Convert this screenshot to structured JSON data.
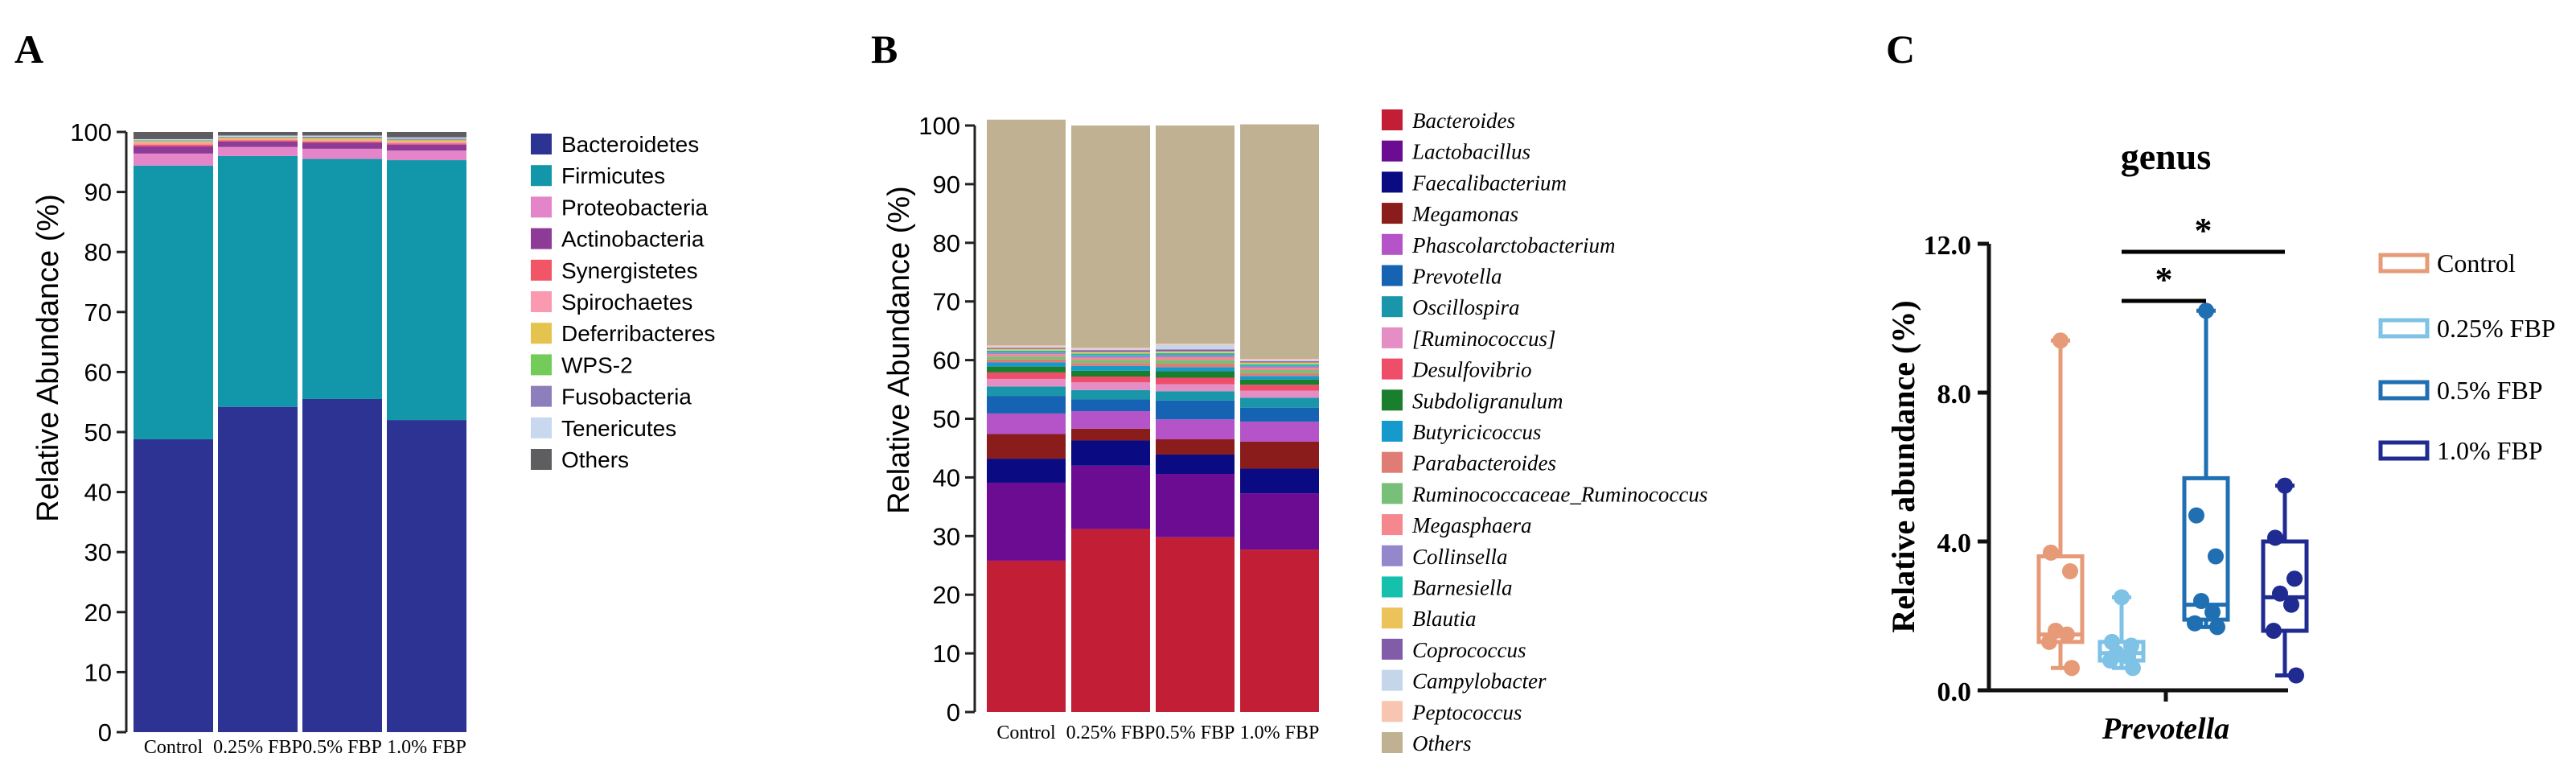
{
  "panel_labels": {
    "a": "A",
    "b": "B",
    "c": "C"
  },
  "colors": {
    "phylum": [
      "#2d3393",
      "#1296a9",
      "#e585c9",
      "#8e3b98",
      "#f25566",
      "#f99ab0",
      "#e5c34f",
      "#73cc59",
      "#8c7fbc",
      "#c8d8ee",
      "#5e5e61"
    ],
    "genus": [
      "#c21f37",
      "#6c0c93",
      "#0a0a82",
      "#8b1c1c",
      "#b454c8",
      "#1763b3",
      "#1a96aa",
      "#e58ec6",
      "#ee4e69",
      "#1a7f2d",
      "#1699cd",
      "#df7d74",
      "#78c079",
      "#f4888e",
      "#9487cb",
      "#15c0ad",
      "#ecc25a",
      "#815ca9",
      "#c5d6eb",
      "#f8c5b0",
      "#c0b193"
    ],
    "groups": [
      "#e69a77",
      "#7ec2e6",
      "#1f6fb2",
      "#1f2b91"
    ]
  },
  "chart_data": [
    {
      "type": "bar",
      "stacked": true,
      "panel": "A",
      "ylabel": "Relative Abundance (%)",
      "ylim": [
        0,
        100
      ],
      "yticks": [
        "0",
        "10",
        "20",
        "30",
        "40",
        "50",
        "60",
        "70",
        "80",
        "90",
        "100"
      ],
      "categories": [
        "Control",
        "0.25% FBP",
        "0.5% FBP",
        "1.0% FBP"
      ],
      "legend_position": "right",
      "series": [
        {
          "name": "Bacteroidetes",
          "values": [
            48.8,
            54.2,
            55.5,
            52.0
          ]
        },
        {
          "name": "Firmicutes",
          "values": [
            45.6,
            41.8,
            40.0,
            43.3
          ]
        },
        {
          "name": "Proteobacteria",
          "values": [
            2.0,
            1.5,
            1.7,
            1.6
          ]
        },
        {
          "name": "Actinobacteria",
          "values": [
            1.2,
            0.9,
            1.0,
            1.0
          ]
        },
        {
          "name": "Synergistetes",
          "values": [
            0.3,
            0.2,
            0.2,
            0.2
          ]
        },
        {
          "name": "Spirochaetes",
          "values": [
            0.3,
            0.2,
            0.2,
            0.3
          ]
        },
        {
          "name": "Deferribacteres",
          "values": [
            0.2,
            0.2,
            0.3,
            0.2
          ]
        },
        {
          "name": "WPS-2",
          "values": [
            0.1,
            0.1,
            0.1,
            0.1
          ]
        },
        {
          "name": "Fusobacteria",
          "values": [
            0.1,
            0.1,
            0.2,
            0.2
          ]
        },
        {
          "name": "Tenericutes",
          "values": [
            0.2,
            0.2,
            0.2,
            0.2
          ]
        },
        {
          "name": "Others",
          "values": [
            1.2,
            0.6,
            0.6,
            0.9
          ]
        }
      ]
    },
    {
      "type": "bar",
      "stacked": true,
      "panel": "B",
      "ylabel": "Relative Abundance (%)",
      "ylim": [
        0,
        100
      ],
      "yticks": [
        "0",
        "10",
        "20",
        "30",
        "40",
        "50",
        "60",
        "70",
        "80",
        "90",
        "100"
      ],
      "categories": [
        "Control",
        "0.25% FBP",
        "0.5% FBP",
        "1.0% FBP"
      ],
      "legend_position": "right",
      "series": [
        {
          "name": "Bacteroides",
          "values": [
            25.8,
            31.2,
            29.8,
            27.7
          ]
        },
        {
          "name": "Lactobacillus",
          "values": [
            13.3,
            10.8,
            10.8,
            9.6
          ]
        },
        {
          "name": "Faecalibacterium",
          "values": [
            4.1,
            4.3,
            3.3,
            4.2
          ]
        },
        {
          "name": "Megamonas",
          "values": [
            4.2,
            2.0,
            2.6,
            4.6
          ]
        },
        {
          "name": "Phascolarctobacterium",
          "values": [
            3.5,
            3.0,
            3.4,
            3.4
          ]
        },
        {
          "name": "Prevotella",
          "values": [
            3.0,
            2.0,
            3.2,
            2.4
          ]
        },
        {
          "name": "Oscillospira",
          "values": [
            1.6,
            1.6,
            1.6,
            1.7
          ]
        },
        {
          "name": "[Ruminococcus]",
          "values": [
            1.3,
            1.3,
            1.2,
            1.2
          ]
        },
        {
          "name": "Desulfovibrio",
          "values": [
            1.1,
            1.0,
            1.1,
            1.0
          ]
        },
        {
          "name": "Subdoligranulum",
          "values": [
            1.0,
            1.0,
            1.1,
            0.9
          ]
        },
        {
          "name": "Butyricicoccus",
          "values": [
            0.7,
            0.8,
            0.7,
            0.6
          ]
        },
        {
          "name": "Parabacteroides",
          "values": [
            0.5,
            0.5,
            0.6,
            0.5
          ]
        },
        {
          "name": "Ruminococcaceae_Ruminococcus",
          "values": [
            0.5,
            0.5,
            0.6,
            0.5
          ]
        },
        {
          "name": "Megasphaera",
          "values": [
            0.4,
            0.4,
            0.5,
            0.4
          ]
        },
        {
          "name": "Collinsella",
          "values": [
            0.3,
            0.4,
            0.4,
            0.3
          ]
        },
        {
          "name": "Barnesiella",
          "values": [
            0.3,
            0.3,
            0.3,
            0.3
          ]
        },
        {
          "name": "Blautia",
          "values": [
            0.3,
            0.3,
            0.3,
            0.3
          ]
        },
        {
          "name": "Coprococcus",
          "values": [
            0.2,
            0.3,
            0.3,
            0.2
          ]
        },
        {
          "name": "Campylobacter",
          "values": [
            0.2,
            0.2,
            0.8,
            0.2
          ]
        },
        {
          "name": "Peptococcus",
          "values": [
            0.2,
            0.2,
            0.2,
            0.2
          ]
        },
        {
          "name": "Others",
          "values": [
            38.5,
            37.9,
            37.2,
            40.0
          ]
        }
      ]
    },
    {
      "type": "box",
      "panel": "C",
      "title": "genus",
      "ylabel": "Relative abundance (%)",
      "xlabel": "Prevotella",
      "ylim": [
        0,
        12
      ],
      "yticks": [
        "0.0",
        "4.0",
        "8.0",
        "12.0"
      ],
      "legend_position": "right",
      "significance": [
        {
          "from": "0.25% FBP",
          "to": "0.5% FBP",
          "label": "*"
        },
        {
          "from": "0.25% FBP",
          "to": "1.0% FBP",
          "label": "*"
        }
      ],
      "series": [
        {
          "name": "Control",
          "min": 0.6,
          "q1": 1.3,
          "median": 1.5,
          "q3": 3.6,
          "max": 9.4,
          "points": [
            9.4,
            3.7,
            3.2,
            1.6,
            1.5,
            1.3,
            0.6
          ]
        },
        {
          "name": "0.25% FBP",
          "min": 0.6,
          "q1": 0.8,
          "median": 1.0,
          "q3": 1.3,
          "max": 2.5,
          "points": [
            2.5,
            1.3,
            1.2,
            1.0,
            0.9,
            0.8,
            0.6
          ]
        },
        {
          "name": "0.5% FBP",
          "min": 1.7,
          "q1": 1.9,
          "median": 2.3,
          "q3": 5.7,
          "max": 10.2,
          "points": [
            10.2,
            4.7,
            3.6,
            2.4,
            2.1,
            1.8,
            1.7
          ]
        },
        {
          "name": "1.0% FBP",
          "min": 0.4,
          "q1": 1.6,
          "median": 2.5,
          "q3": 4.0,
          "max": 5.5,
          "points": [
            5.5,
            4.1,
            3.0,
            2.6,
            2.3,
            1.6,
            0.4
          ]
        }
      ]
    }
  ]
}
